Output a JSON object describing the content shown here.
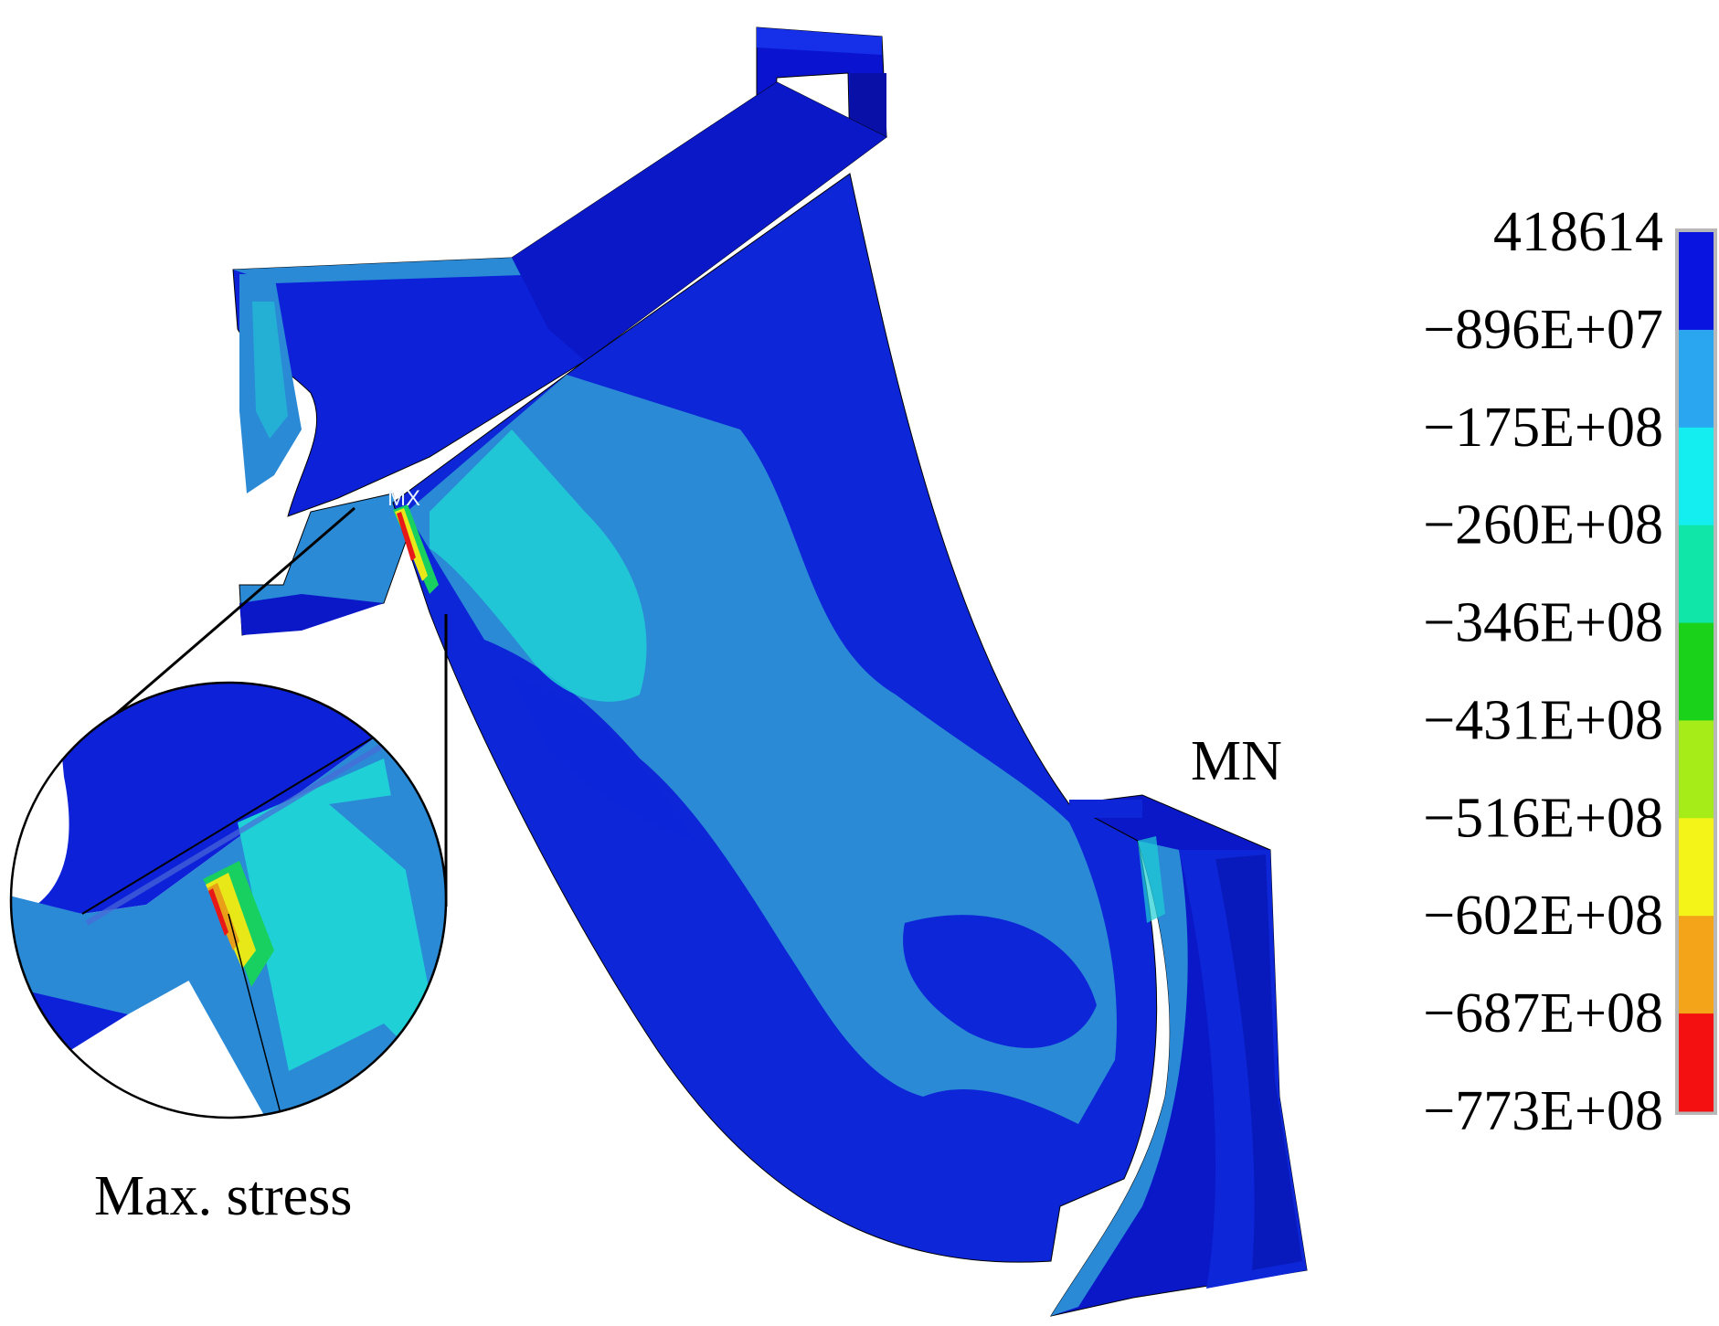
{
  "labels": {
    "max_marker": "MX",
    "min_marker": "MN",
    "zoom_caption": "Max. stress"
  },
  "legend": {
    "entries": [
      {
        "label": "418614",
        "color": "#0a14e0"
      },
      {
        "label": "−896E+07",
        "color": "#0a14e0"
      },
      {
        "label": "−175E+08",
        "color": "#2aa6f0"
      },
      {
        "label": "−260E+08",
        "color": "#14eef0"
      },
      {
        "label": "−346E+08",
        "color": "#10e6a8"
      },
      {
        "label": "−431E+08",
        "color": "#1ad21a"
      },
      {
        "label": "−516E+08",
        "color": "#a6ec18"
      },
      {
        "label": "−602E+08",
        "color": "#f4f418"
      },
      {
        "label": "−687E+08",
        "color": "#f4a418"
      },
      {
        "label": "−773E+08",
        "color": "#f41010"
      }
    ],
    "band_colors": [
      "#0a14e0",
      "#2aa6f0",
      "#14eef0",
      "#10e6a8",
      "#1ad21a",
      "#a6ec18",
      "#f4f418",
      "#f4a418",
      "#f41010"
    ]
  },
  "colors": {
    "deep_blue": "#0a1ac8",
    "blue": "#0d26d8",
    "light_blue": "#2a8ad6",
    "cyan": "#1fd0d6",
    "green": "#18d060",
    "yellow": "#e8e818",
    "red": "#e81818"
  }
}
